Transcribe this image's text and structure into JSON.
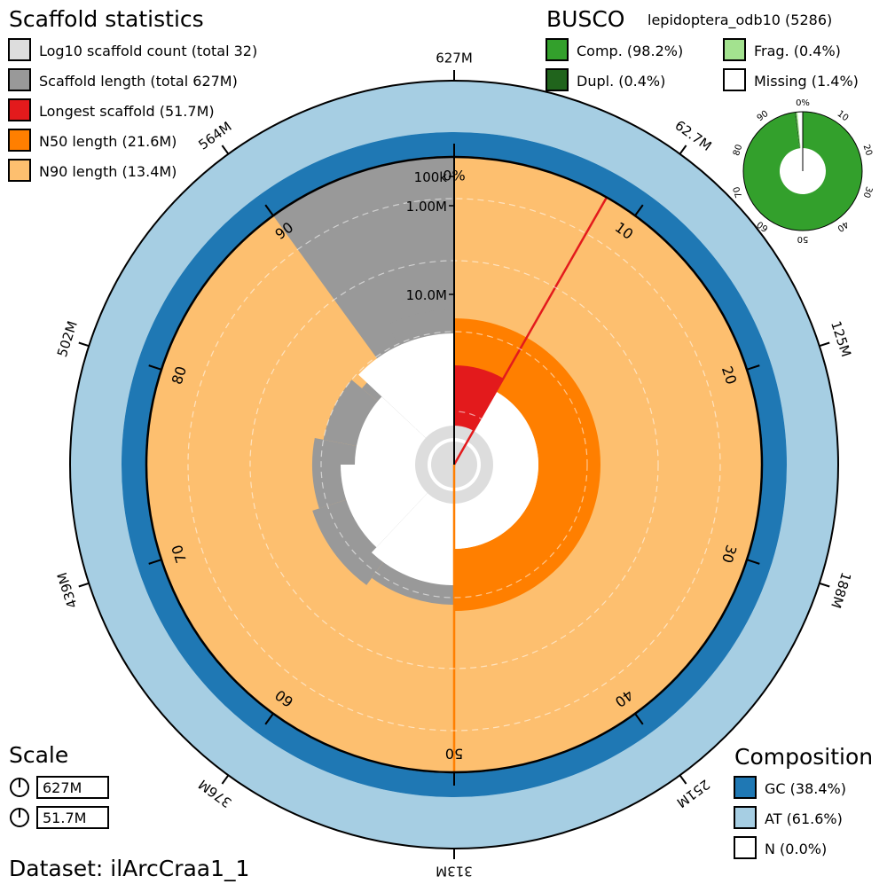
{
  "scaffold_stats": {
    "heading": "Scaffold statistics",
    "legend": [
      {
        "label": "Log10 scaffold count (total 32)",
        "color": "#dddddd"
      },
      {
        "label": "Scaffold length (total 627M)",
        "color": "#999999"
      },
      {
        "label": "Longest scaffold (51.7M)",
        "color": "#e31a1c"
      },
      {
        "label": "N50 length (21.6M)",
        "color": "#ff7f00"
      },
      {
        "label": "N90 length (13.4M)",
        "color": "#fdbf6f"
      }
    ]
  },
  "busco": {
    "heading": "BUSCO",
    "lineage": "lepidoptera_odb10 (5286)",
    "legend": [
      {
        "label": "Comp. (98.2%)",
        "color": "#33a02c"
      },
      {
        "label": "Frag. (0.4%)",
        "color": "#a3e28f"
      },
      {
        "label": "Dupl. (0.4%)",
        "color": "#20641c"
      },
      {
        "label": "Missing (1.4%)",
        "color": "#ffffff"
      }
    ],
    "ticks": [
      "0%",
      "10",
      "20",
      "30",
      "40",
      "50",
      "60",
      "70",
      "80",
      "90"
    ]
  },
  "scale": {
    "heading": "Scale",
    "values": [
      "627M",
      "51.7M"
    ]
  },
  "composition": {
    "heading": "Composition",
    "legend": [
      {
        "label": "GC (38.4%)",
        "color": "#1f78b4"
      },
      {
        "label": "AT (61.6%)",
        "color": "#a6cee3"
      },
      {
        "label": "N (0.0%)",
        "color": "#ffffff"
      }
    ]
  },
  "dataset_label": "Dataset: ilArcCraa1_1",
  "colors": {
    "scaffold_count": "#dddddd",
    "scaffold_length": "#999999",
    "longest": "#e31a1c",
    "n50": "#ff7f00",
    "n90": "#fdbf6f",
    "gc": "#1f78b4",
    "at": "#a6cee3"
  },
  "chart_data": {
    "type": "snail",
    "total_length": "627M",
    "scaffold_count": 32,
    "longest_scaffold": "51.7M",
    "n50": "21.6M",
    "n90": "13.4M",
    "outer_length_ticks": [
      "627M",
      "62.7M",
      "125M",
      "188M",
      "251M",
      "313M",
      "376M",
      "439M",
      "502M",
      "564M"
    ],
    "percent_ticks": [
      "0%",
      "10",
      "20",
      "30",
      "40",
      "50",
      "60",
      "70",
      "80",
      "90"
    ],
    "radial_length_labels": [
      "100k",
      "1.00M",
      "10.0M"
    ],
    "gc_percent": 38.4,
    "at_percent": 61.6,
    "n_percent": 0.0,
    "busco": {
      "complete": 98.2,
      "fragmented": 0.4,
      "duplicated": 0.4,
      "missing": 1.4,
      "lineage": "lepidoptera_odb10",
      "total": 5286
    }
  }
}
